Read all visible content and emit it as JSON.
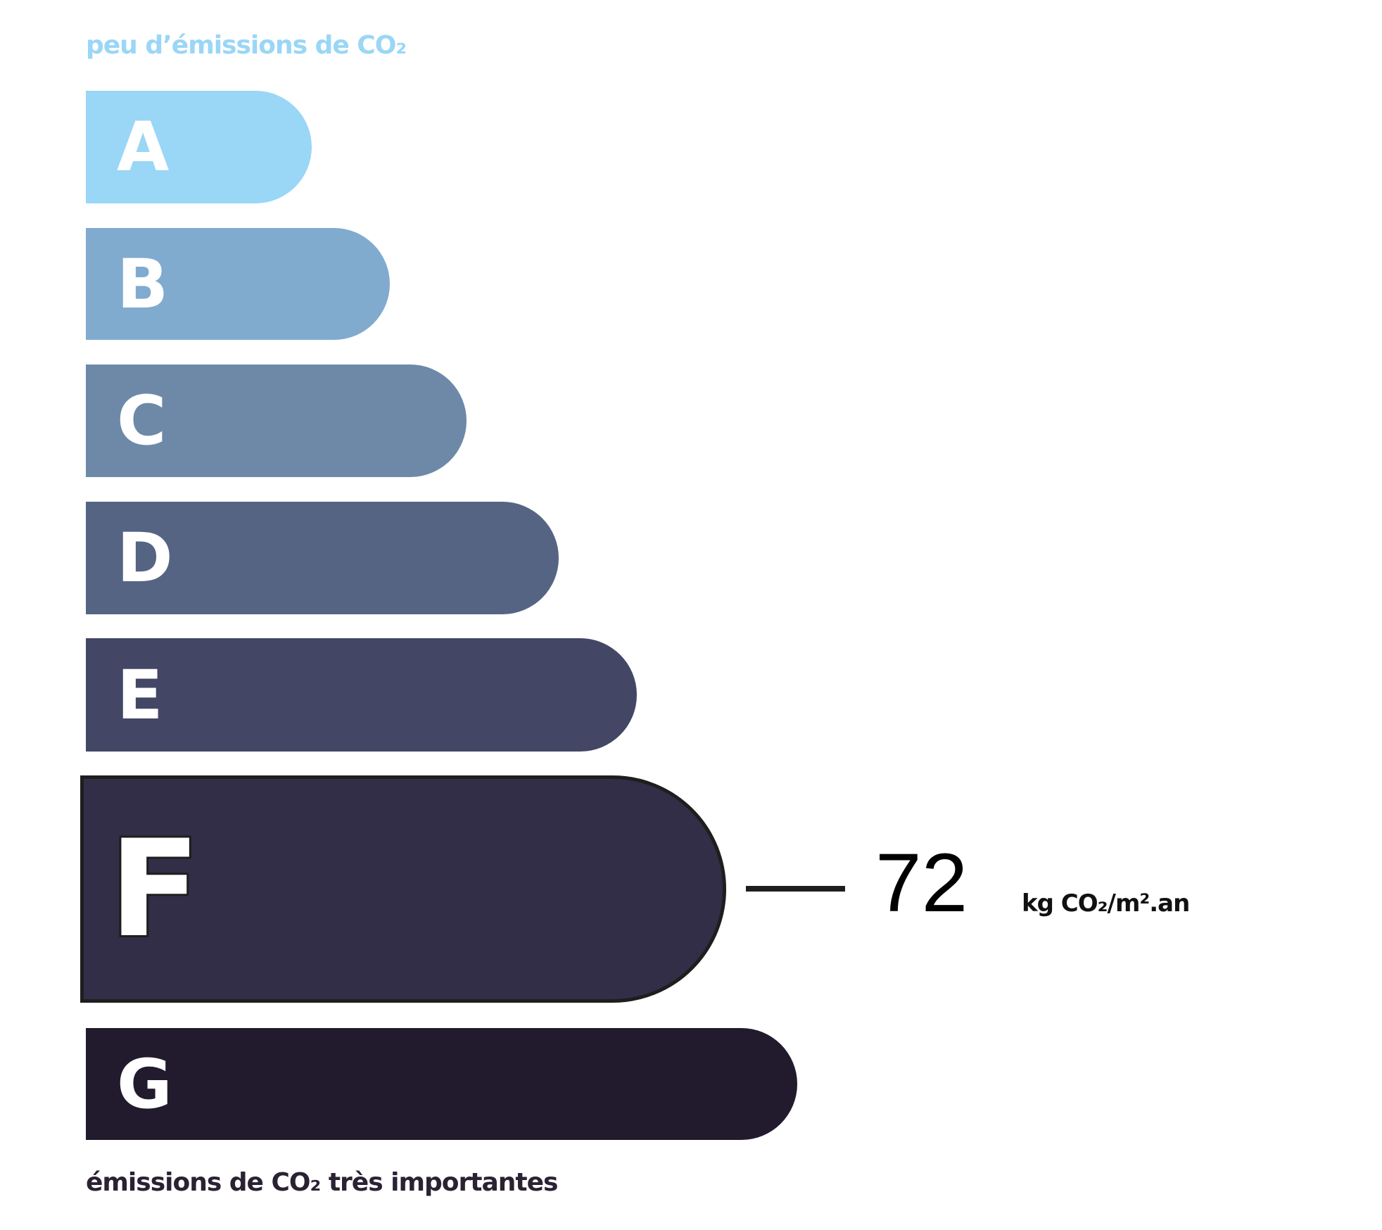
{
  "chart_data": {
    "type": "bar",
    "title": "",
    "top_label": "peu d’émissions de CO₂",
    "bottom_label": "émissions de CO₂ très importantes",
    "categories": [
      "A",
      "B",
      "C",
      "D",
      "E",
      "F",
      "G"
    ],
    "colors": [
      "#9ad6f6",
      "#80abcf",
      "#6e89a8",
      "#556483",
      "#434765",
      "#322e47",
      "#221a2d"
    ],
    "highlighted_class": "F",
    "value": "72",
    "unit": "kg CO₂/m².an",
    "label_colors": {
      "top": "#9ad6f6",
      "bottom": "#2a2233"
    }
  }
}
